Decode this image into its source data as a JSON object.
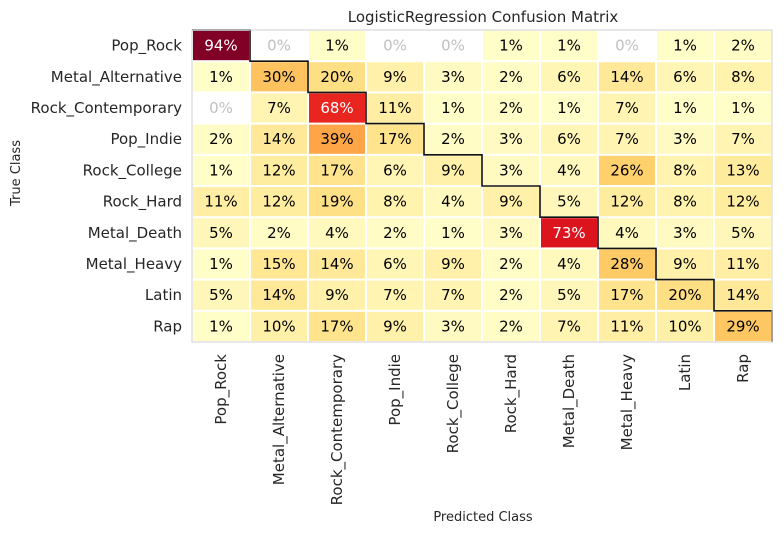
{
  "chart_data": {
    "type": "heatmap",
    "title": "LogisticRegression Confusion Matrix",
    "xlabel": "Predicted Class",
    "ylabel": "True Class",
    "classes": [
      "Pop_Rock",
      "Metal_Alternative",
      "Rock_Contemporary",
      "Pop_Indie",
      "Rock_College",
      "Rock_Hard",
      "Metal_Death",
      "Metal_Heavy",
      "Latin",
      "Rap"
    ],
    "value_format": "percent",
    "values": [
      [
        94,
        0,
        1,
        0,
        0,
        1,
        1,
        0,
        1,
        2
      ],
      [
        1,
        30,
        20,
        9,
        3,
        2,
        6,
        14,
        6,
        8
      ],
      [
        0,
        7,
        68,
        11,
        1,
        2,
        1,
        7,
        1,
        1
      ],
      [
        2,
        14,
        39,
        17,
        2,
        3,
        6,
        7,
        3,
        7
      ],
      [
        1,
        12,
        17,
        6,
        9,
        3,
        4,
        26,
        8,
        13
      ],
      [
        11,
        12,
        19,
        8,
        4,
        9,
        5,
        12,
        8,
        12
      ],
      [
        5,
        2,
        4,
        2,
        1,
        3,
        73,
        4,
        3,
        5
      ],
      [
        1,
        15,
        14,
        6,
        9,
        2,
        4,
        28,
        9,
        11
      ],
      [
        5,
        14,
        9,
        7,
        7,
        2,
        5,
        17,
        20,
        14
      ],
      [
        1,
        10,
        17,
        9,
        3,
        2,
        7,
        11,
        10,
        29
      ]
    ],
    "colormap": "YlOrRd",
    "zero_cell_color": "#ffffff",
    "zero_text_color": "#c0c0c0",
    "diagonal_outline": true,
    "grid": false
  }
}
